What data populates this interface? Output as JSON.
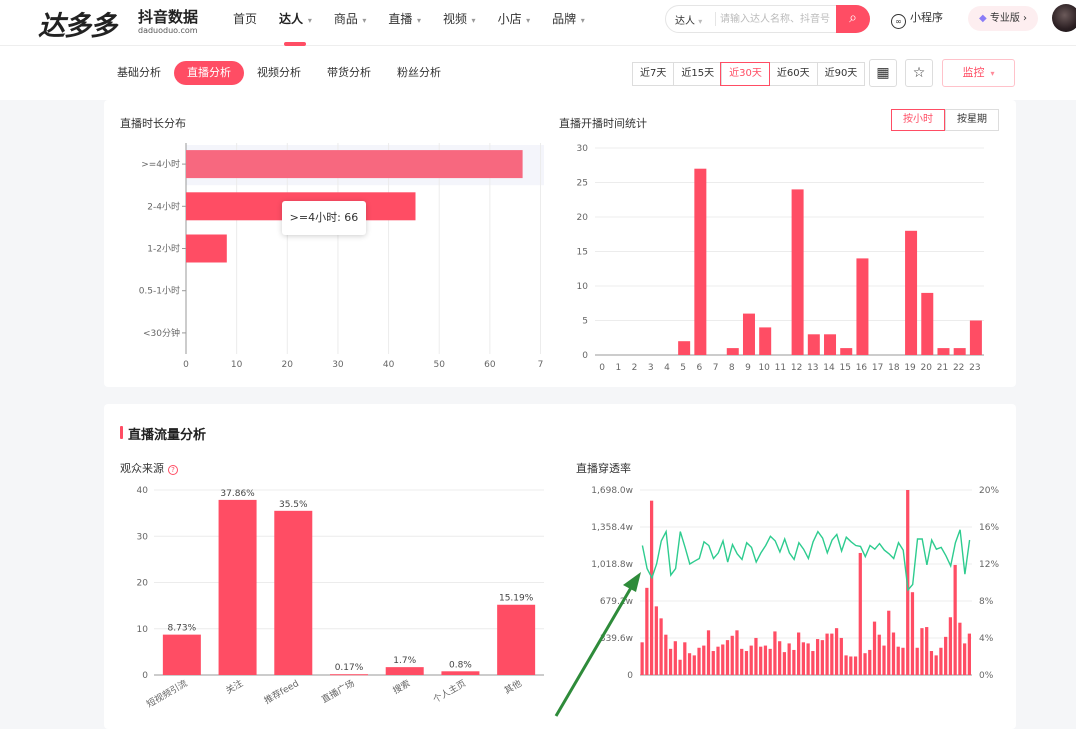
{
  "header": {
    "logo_main": "达多多",
    "logo_cn": "抖音数据",
    "logo_en": "daduoduo.com",
    "nav": [
      {
        "label": "首页",
        "has_menu": false,
        "active": false
      },
      {
        "label": "达人",
        "has_menu": true,
        "active": true
      },
      {
        "label": "商品",
        "has_menu": true,
        "active": false
      },
      {
        "label": "直播",
        "has_menu": true,
        "active": false
      },
      {
        "label": "视频",
        "has_menu": true,
        "active": false
      },
      {
        "label": "小店",
        "has_menu": true,
        "active": false
      },
      {
        "label": "品牌",
        "has_menu": true,
        "active": false
      }
    ],
    "search_type": "达人",
    "search_placeholder": "请输入达人名称、抖音号",
    "mini_program": "小程序",
    "pro_label": "专业版",
    "accent_color": "#ff4d64"
  },
  "subnav": {
    "tabs": [
      "基础分析",
      "直播分析",
      "视频分析",
      "带货分析",
      "粉丝分析"
    ],
    "active_tab": 1,
    "ranges": [
      "近7天",
      "近15天",
      "近30天",
      "近60天",
      "近90天"
    ],
    "active_range": 2,
    "monitor_label": "监控"
  },
  "live_section": {
    "duration_title": "直播时长分布",
    "start_title": "直播开播时间统计",
    "toggle": [
      "按小时",
      "按星期"
    ],
    "active_toggle": 0
  },
  "tooltip": {
    "text": ">=4小时: 66"
  },
  "traffic_section": {
    "title": "直播流量分析",
    "source_title": "观众来源",
    "penetration_title": "直播穿透率"
  },
  "chart_data": [
    {
      "type": "bar",
      "orientation": "horizontal",
      "title": "直播时长分布",
      "categories": [
        ">=4小时",
        "2-4小时",
        "1-2小时",
        "0.5-1小时",
        "<30分钟"
      ],
      "values": [
        66,
        45,
        8,
        0,
        0
      ],
      "xlim": [
        0,
        70
      ],
      "xticks": [
        "0",
        "10",
        "20",
        "30",
        "40",
        "50",
        "60",
        "7"
      ],
      "color": "#ff4d64",
      "highlight_color": "#f7687f"
    },
    {
      "type": "bar",
      "title": "直播开播时间统计",
      "categories": [
        "0",
        "1",
        "2",
        "3",
        "4",
        "5",
        "6",
        "7",
        "8",
        "9",
        "10",
        "11",
        "12",
        "13",
        "14",
        "15",
        "16",
        "17",
        "18",
        "19",
        "20",
        "21",
        "22",
        "23"
      ],
      "values": [
        0,
        0,
        0,
        0,
        0,
        2,
        27,
        0,
        1,
        6,
        4,
        0,
        24,
        3,
        3,
        1,
        14,
        0,
        0,
        18,
        9,
        1,
        1,
        5
      ],
      "ylim": [
        0,
        30
      ],
      "yticks": [
        "0",
        "5",
        "10",
        "15",
        "20",
        "25",
        "30"
      ],
      "color": "#ff4d64"
    },
    {
      "type": "bar",
      "title": "观众来源",
      "categories": [
        "短视频引流",
        "关注",
        "推荐feed",
        "直播广场",
        "搜索",
        "个人主页",
        "其他"
      ],
      "values": [
        8.73,
        37.86,
        35.5,
        0.17,
        1.7,
        0.8,
        15.19
      ],
      "value_labels": [
        "8.73%",
        "37.86%",
        "35.5%",
        "0.17%",
        "1.7%",
        "0.8%",
        "15.19%"
      ],
      "ylim": [
        0,
        40
      ],
      "yticks": [
        "0",
        "10",
        "20",
        "30",
        "40"
      ],
      "color": "#ff4d64"
    },
    {
      "type": "bar+line",
      "title": "直播穿透率",
      "left_yticks": [
        "0",
        "339.6w",
        "679.2w",
        "1,018.8w",
        "1,358.4w",
        "1,698.0w"
      ],
      "right_yticks": [
        "0%",
        "4%",
        "8%",
        "12%",
        "16%",
        "20%"
      ],
      "left_ylim": [
        0,
        1698
      ],
      "right_ylim": [
        0,
        20
      ],
      "bar_values": [
        300,
        800,
        1600,
        630,
        520,
        370,
        240,
        310,
        140,
        300,
        200,
        180,
        250,
        270,
        410,
        220,
        260,
        280,
        320,
        360,
        410,
        240,
        220,
        270,
        340,
        260,
        270,
        240,
        400,
        310,
        210,
        290,
        230,
        390,
        300,
        290,
        220,
        330,
        320,
        380,
        380,
        430,
        340,
        180,
        170,
        170,
        1120,
        200,
        230,
        490,
        370,
        270,
        590,
        390,
        260,
        250,
        1698,
        760,
        250,
        430,
        440,
        220,
        180,
        250,
        350,
        530,
        1010,
        480,
        290,
        380
      ],
      "line_values": [
        14,
        11.5,
        10.5,
        12,
        14.5,
        15.5,
        10.8,
        11.5,
        15.5,
        13.8,
        12,
        12.3,
        12.6,
        14.4,
        14,
        12.6,
        13.2,
        14.5,
        12.2,
        14.1,
        13.1,
        12.5,
        14.3,
        13.8,
        12.2,
        13.2,
        14,
        15,
        14.5,
        13.3,
        14.7,
        13.2,
        12.5,
        14.3,
        13.6,
        12.6,
        14.4,
        15.5,
        14.8,
        13.2,
        14.6,
        15.2,
        13.4,
        14.9,
        14.4,
        14,
        13.9,
        12.8,
        14,
        13.6,
        14.2,
        13.5,
        13.1,
        12.6,
        14.3,
        13.5,
        9.2,
        9.8,
        14.7,
        14.7,
        11.9,
        14.6,
        13.6,
        13.8,
        12.9,
        11.8,
        14.3,
        15.7,
        10.9,
        14.6
      ],
      "bar_color": "#ff4d64",
      "line_color": "#2ecc8f"
    }
  ]
}
